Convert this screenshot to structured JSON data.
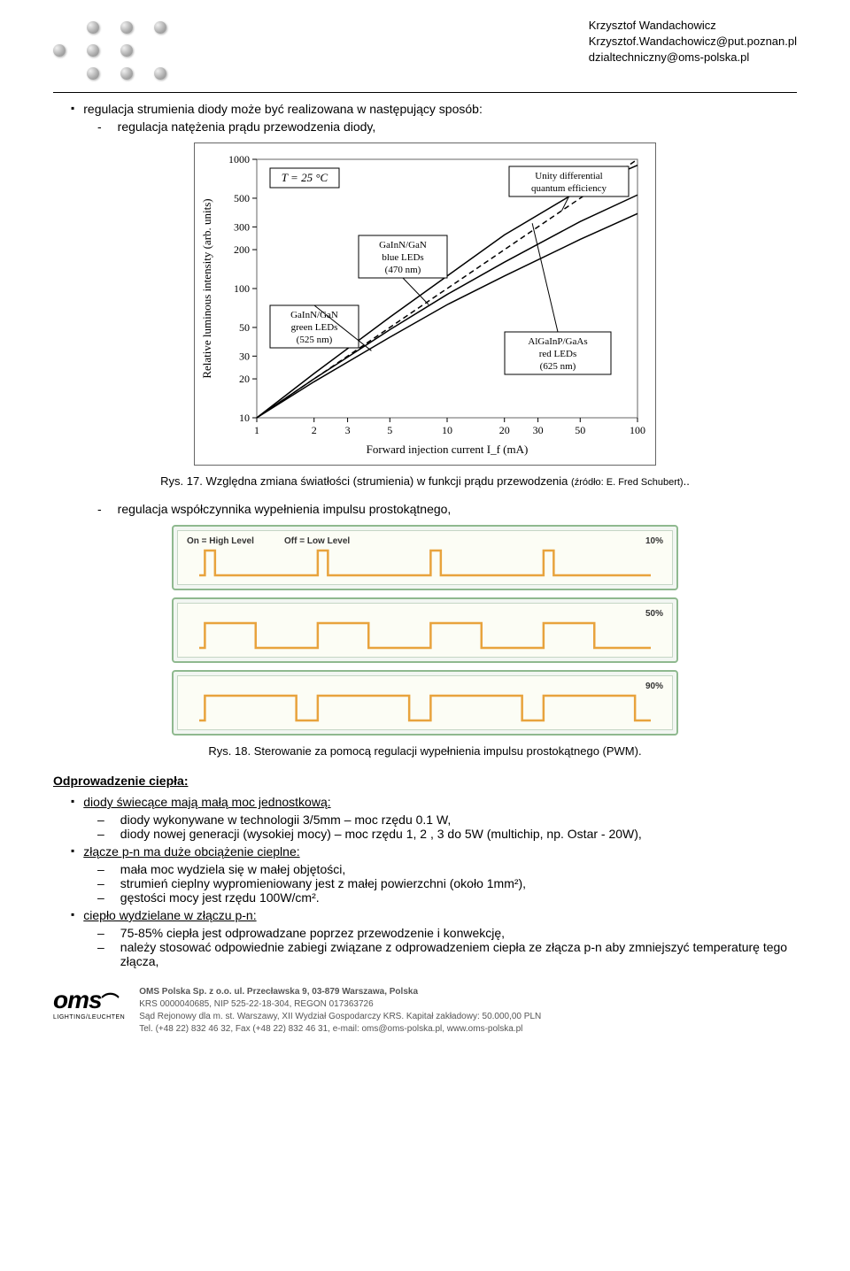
{
  "header": {
    "name": "Krzysztof Wandachowicz",
    "email1": "Krzysztof.Wandachowicz@put.poznan.pl",
    "email2": "dzialtechniczny@oms-polska.pl"
  },
  "intro": {
    "bullet": "regulacja strumienia diody może być realizowana w następujący sposób:",
    "sub1": "regulacja natężenia prądu przewodzenia diody,"
  },
  "fig17": {
    "caption": "Rys. 17. Względna zmiana światłości (strumienia) w funkcji prądu przewodzenia",
    "source": "(źródło: E. Fred Schubert)",
    "dots": ".."
  },
  "chart": {
    "type": "line-loglog",
    "xlabel": "Forward injection current  I_f  (mA)",
    "ylabel": "Relative luminous intensity  (arb. units)",
    "xticks": [
      "1",
      "2",
      "3",
      "5",
      "10",
      "20",
      "30",
      "50",
      "100"
    ],
    "yticks": [
      "10",
      "20",
      "30",
      "50",
      "100",
      "200",
      "300",
      "500",
      "1000"
    ],
    "temp_box": "T = 25 °C",
    "annotations": {
      "unity": "Unity differential\nquantum efficiency",
      "green": "GaInN/GaN\ngreen LEDs\n(525 nm)",
      "blue": "GaInN/GaN\nblue LEDs\n(470 nm)",
      "red": "AlGaInP/GaAs\nred LEDs\n(625 nm)"
    },
    "colors": {
      "border": "#666666",
      "grid": "#999999",
      "line": "#000000",
      "text": "#000000"
    }
  },
  "sub2": "regulacja współczynnika wypełnienia impulsu prostokątnego,",
  "pwm": {
    "panels": [
      {
        "on_label": "On = High Level",
        "off_label": "Off = Low Level",
        "duty_label": "10%",
        "duty": 0.1,
        "cycles": 4
      },
      {
        "duty_label": "50%",
        "duty": 0.5,
        "cycles": 4
      },
      {
        "duty_label": "90%",
        "duty": 0.9,
        "cycles": 4
      }
    ],
    "colors": {
      "border": "#8fb98f",
      "bg": "#f2f6f2",
      "inner_bg": "#fcfdf5",
      "wave": "#e8a33d"
    }
  },
  "fig18": {
    "caption": "Rys. 18. Sterowanie za pomocą regulacji wypełnienia impulsu prostokątnego (PWM)."
  },
  "heat": {
    "title": "Odprowadzenie ciepła:",
    "b1": "diody świecące mają małą moc jednostkową:",
    "b1s1": "diody wykonywane w technologii 3/5mm – moc rzędu 0.1 W,",
    "b1s2": "diody nowej generacji (wysokiej mocy) – moc rzędu 1, 2 , 3 do 5W (multichip, np. Ostar - 20W),",
    "b2": "złącze p-n ma duże obciążenie cieplne:",
    "b2s1": "mała moc wydziela się w małej objętości,",
    "b2s2": "strumień cieplny wypromieniowany jest z małej powierzchni (około 1mm²),",
    "b2s3": "gęstości mocy jest rzędu 100W/cm².",
    "b3": "ciepło wydzielane w złączu p-n:",
    "b3s1": "75-85% ciepła jest odprowadzane poprzez przewodzenie i konwekcję,",
    "b3s2": "należy stosować odpowiednie zabiegi związane z odprowadzeniem ciepła ze złącza p-n aby zmniejszyć temperaturę tego złącza,"
  },
  "footer": {
    "logo_main": "oms",
    "logo_sub": "LIGHTING/LEUCHTEN",
    "line1": "OMS Polska Sp. z o.o. ul. Przecławska 9, 03-879 Warszawa, Polska",
    "line2": "KRS 0000040685, NIP 525-22-18-304, REGON 017363726",
    "line3": "Sąd Rejonowy dla m. st. Warszawy, XII Wydział Gospodarczy KRS. Kapitał zakładowy: 50.000,00 PLN",
    "line4": "Tel. (+48 22) 832 46 32, Fax (+48 22) 832 46 31, e-mail: oms@oms-polska.pl, www.oms-polska.pl"
  }
}
